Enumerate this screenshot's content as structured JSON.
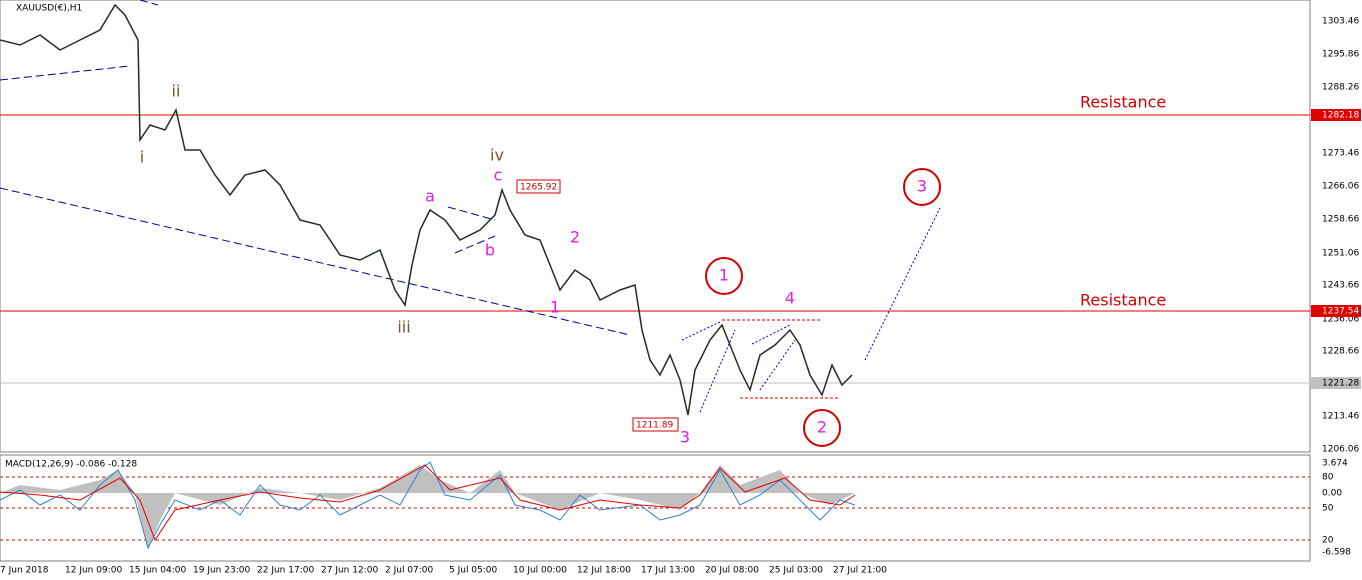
{
  "header": {
    "symbol": "XAUUSD(€),H1"
  },
  "price_axis": [
    "1303.46",
    "1295.86",
    "1288.26",
    "1273.46",
    "1266.06",
    "1258.66",
    "1251.06",
    "1243.66",
    "1236.06",
    "1228.66",
    "1213.46",
    "1206.06"
  ],
  "price_tags": {
    "resistance_upper": "1282.18",
    "resistance_lower": "1237.54",
    "current": "1221.28",
    "high_c": "1265.92",
    "low_3": "1211.89"
  },
  "levels": [
    "Resistance",
    "Resistance"
  ],
  "waves": {
    "i": "i",
    "ii": "ii",
    "iii": "iii",
    "iv": "iv",
    "a": "a",
    "b": "b",
    "c": "c",
    "one": "1",
    "two": "2",
    "three": "3",
    "four": "4",
    "circle_one": "1",
    "circle_two": "2",
    "circle_three": "3"
  },
  "macd": {
    "title": "MACD(12,26,9) -0.086 -0.128",
    "axis": [
      "3.674",
      "80",
      "0.00",
      "50",
      "20",
      "-6.598"
    ]
  },
  "time_axis": [
    "7 Jun 2018",
    "12 Jun 09:00",
    "15 Jun 04:00",
    "19 Jun 23:00",
    "22 Jun 17:00",
    "27 Jun 12:00",
    "2 Jul 07:00",
    "5 Jul 05:00",
    "10 Jul 00:00",
    "12 Jul 18:00",
    "17 Jul 13:00",
    "20 Jul 08:00",
    "25 Jul 03:00",
    "27 Jul 21:00"
  ]
}
